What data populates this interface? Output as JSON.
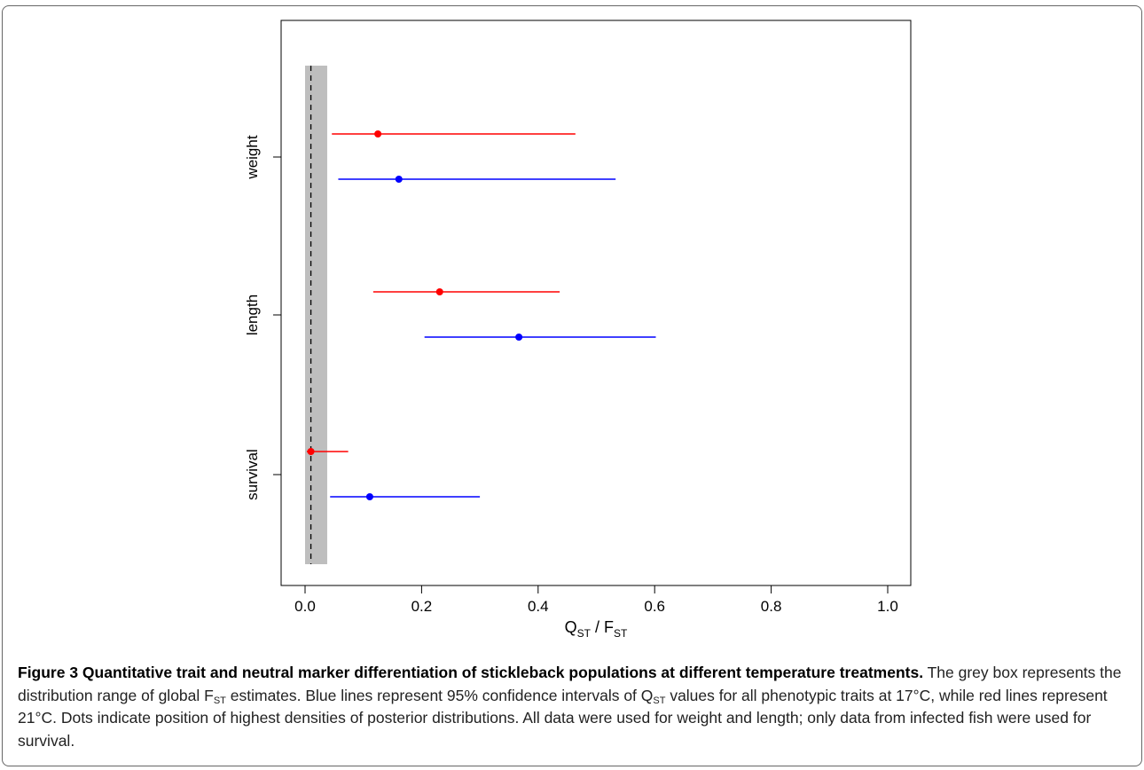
{
  "chart_data": {
    "type": "interval",
    "x_axis": {
      "label_main1": "Q",
      "label_sub1": "ST",
      "label_mid": " / F",
      "label_sub2": "ST",
      "range": [
        0,
        1
      ],
      "ticks": [
        0.0,
        0.2,
        0.4,
        0.6,
        0.8,
        1.0
      ],
      "tick_labels": [
        "0.0",
        "0.2",
        "0.4",
        "0.6",
        "0.8",
        "1.0"
      ]
    },
    "y_axis": {
      "categories": [
        "weight",
        "length",
        "survival"
      ]
    },
    "fst_range": [
      0.0,
      0.038
    ],
    "fst_point": 0.01,
    "series": [
      {
        "color": "#ff0000",
        "intervals": [
          {
            "trait": "weight",
            "low": 0.046,
            "high": 0.464,
            "mode": 0.125
          },
          {
            "trait": "length",
            "low": 0.117,
            "high": 0.437,
            "mode": 0.231
          },
          {
            "trait": "survival",
            "low": 0.003,
            "high": 0.074,
            "mode": 0.01
          }
        ]
      },
      {
        "color": "#0000ff",
        "intervals": [
          {
            "trait": "weight",
            "low": 0.057,
            "high": 0.533,
            "mode": 0.161
          },
          {
            "trait": "length",
            "low": 0.205,
            "high": 0.602,
            "mode": 0.367
          },
          {
            "trait": "survival",
            "low": 0.043,
            "high": 0.3,
            "mode": 0.111
          }
        ]
      }
    ]
  },
  "caption": {
    "title": "Figure 3 Quantitative trait and neutral marker differentiation of stickleback populations at different temperature treatments.",
    "t1": " The grey box represents the distribution range of global F",
    "s1": "ST",
    "t2": " estimates. Blue lines represent 95% confidence intervals of Q",
    "s2": "ST",
    "t3": " values for all phenotypic traits at 17°C, while red lines represent 21°C. Dots indicate position of highest densities of posterior distributions. All data were used for weight and length; only data from infected fish were used for survival."
  }
}
